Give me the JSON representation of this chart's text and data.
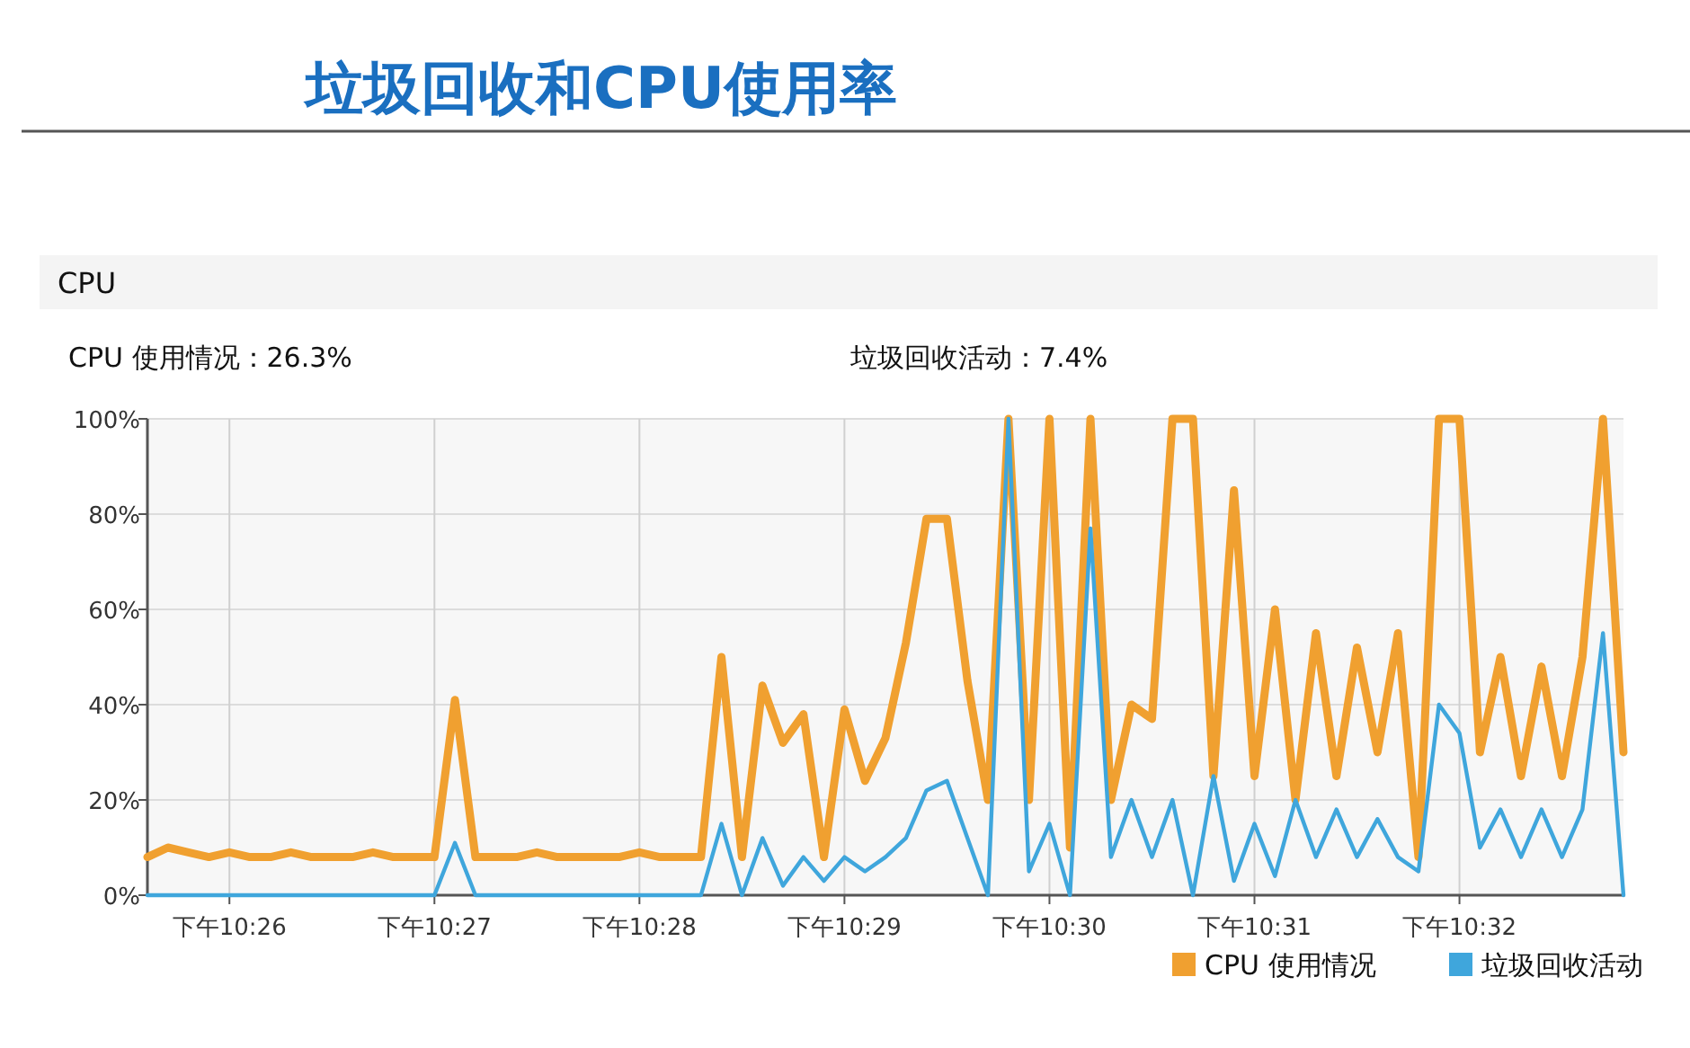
{
  "chart_data": {
    "type": "line",
    "title": "垃圾回收和CPU使用率",
    "annotations": [
      "CPU",
      "CPU 使用情况：26.3%",
      "垃圾回收活动：7.4%"
    ],
    "categories": [
      null,
      null,
      null,
      null,
      "下午10:26",
      null,
      null,
      null,
      null,
      null,
      null,
      null,
      null,
      null,
      "下午10:27",
      null,
      null,
      null,
      null,
      null,
      null,
      null,
      null,
      null,
      "下午10:28",
      null,
      null,
      null,
      null,
      null,
      null,
      null,
      null,
      null,
      "下午10:29",
      null,
      null,
      null,
      null,
      null,
      null,
      null,
      null,
      null,
      "下午10:30",
      null,
      null,
      null,
      null,
      null,
      null,
      null,
      null,
      null,
      "下午10:31",
      null,
      null,
      null,
      null,
      null,
      null,
      null,
      null,
      null,
      "下午10:32",
      null,
      null,
      null,
      null,
      null,
      null,
      null,
      null
    ],
    "ylim": [
      0,
      100
    ],
    "yticks": [
      {
        "value": 0,
        "label": "0%"
      },
      {
        "value": 20,
        "label": "20%"
      },
      {
        "value": 40,
        "label": "40%"
      },
      {
        "value": 60,
        "label": "60%"
      },
      {
        "value": 80,
        "label": "80%"
      },
      {
        "value": 100,
        "label": "100%"
      }
    ],
    "grid": true,
    "legend": "bottom right",
    "line_style": "solid",
    "series": [
      {
        "name": "CPU 使用情况",
        "color": "#f0a030",
        "values": [
          8,
          10,
          9,
          8,
          9,
          8,
          8,
          9,
          8,
          8,
          8,
          9,
          8,
          8,
          8,
          41,
          8,
          8,
          8,
          9,
          8,
          8,
          8,
          8,
          9,
          8,
          8,
          8,
          50,
          8,
          44,
          32,
          38,
          8,
          39,
          24,
          33,
          53,
          79,
          79,
          45,
          20,
          100,
          20,
          100,
          10,
          100,
          20,
          40,
          37,
          100,
          100,
          25,
          85,
          25,
          60,
          20,
          55,
          25,
          52,
          30,
          55,
          8,
          100,
          100,
          30,
          50,
          25,
          48,
          25,
          50,
          100,
          30
        ]
      },
      {
        "name": "垃圾回收活动",
        "color": "#3fa6dc",
        "values": [
          0,
          0,
          0,
          0,
          0,
          0,
          0,
          0,
          0,
          0,
          0,
          0,
          0,
          0,
          0,
          11,
          0,
          0,
          0,
          0,
          0,
          0,
          0,
          0,
          0,
          0,
          0,
          0,
          15,
          0,
          12,
          2,
          8,
          3,
          8,
          5,
          8,
          12,
          22,
          24,
          12,
          0,
          100,
          5,
          15,
          0,
          77,
          8,
          20,
          8,
          20,
          0,
          25,
          3,
          15,
          4,
          20,
          8,
          18,
          8,
          16,
          8,
          5,
          40,
          34,
          10,
          18,
          8,
          18,
          8,
          18,
          55,
          0
        ]
      }
    ]
  }
}
